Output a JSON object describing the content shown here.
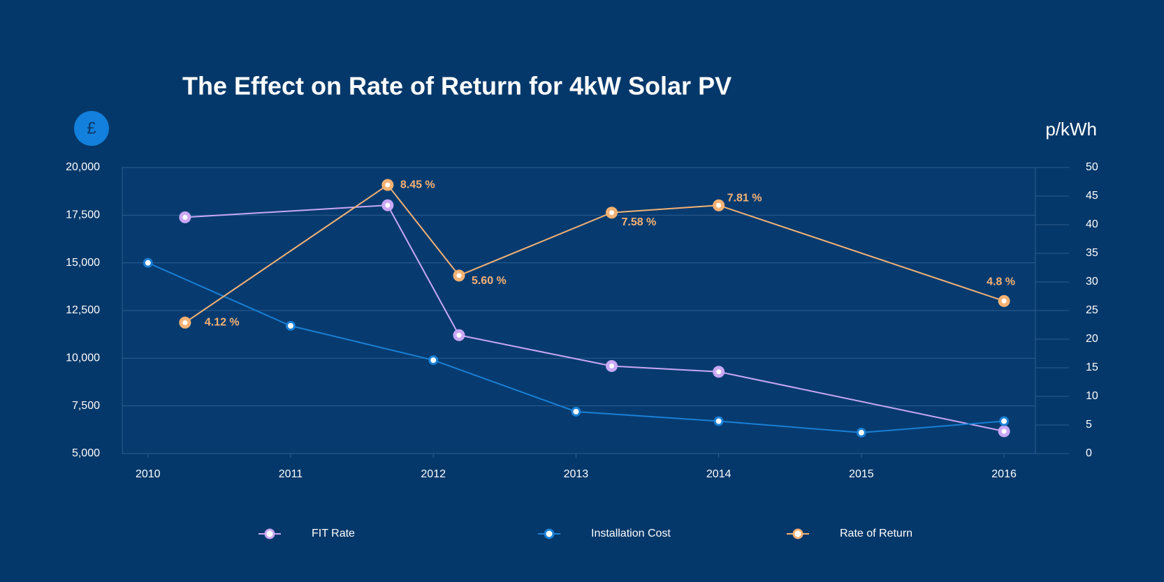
{
  "chart_data": {
    "type": "line",
    "title": "The Effect on Rate of Return for 4kW Solar PV",
    "y_label": "£",
    "y2_label": "p/kWh",
    "xlim": [
      2009.82,
      2016.22
    ],
    "xticks": [
      2010,
      2011,
      2012,
      2013,
      2014,
      2015,
      2016
    ],
    "ylim": [
      5000,
      20000
    ],
    "yticks": [
      {
        "value": 5000,
        "label": "5,000"
      },
      {
        "value": 7500,
        "label": "7,500"
      },
      {
        "value": 10000,
        "label": "10,000"
      },
      {
        "value": 12500,
        "label": "12,500"
      },
      {
        "value": 15000,
        "label": "15,000"
      },
      {
        "value": 17500,
        "label": "17,500"
      },
      {
        "value": 20000,
        "label": "20,000"
      }
    ],
    "y2lim": [
      0,
      50
    ],
    "y2ticks": [
      0,
      5,
      10,
      15,
      20,
      25,
      30,
      35,
      40,
      45,
      50
    ],
    "y3lim": [
      0,
      9
    ],
    "grid": true,
    "series": [
      {
        "name": "FIT Rate",
        "color": "#c9a8f5",
        "axis": "y2",
        "x": [
          2010.26,
          2011.68,
          2012.18,
          2013.25,
          2014,
          2016
        ],
        "values": [
          41.3,
          43.4,
          20.7,
          15.3,
          14.3,
          3.9
        ]
      },
      {
        "name": "Installation Cost",
        "color": "#1a7fd4",
        "x": [
          2010,
          2011,
          2012,
          2013,
          2014,
          2015,
          2016
        ],
        "values": [
          15000,
          11700,
          9900,
          7200,
          6700,
          6100,
          6700
        ]
      },
      {
        "name": "Rate of Return",
        "color": "#f5b273",
        "axis": "y3",
        "x": [
          2010.26,
          2011.68,
          2012.18,
          2013.25,
          2014,
          2016
        ],
        "values": [
          4.12,
          8.45,
          5.6,
          7.58,
          7.81,
          4.8
        ],
        "value_labels": [
          "4.12 %",
          "8.45 %",
          "5.60 %",
          "7.58 %",
          "7.81 %",
          "4.8 %"
        ]
      }
    ]
  }
}
